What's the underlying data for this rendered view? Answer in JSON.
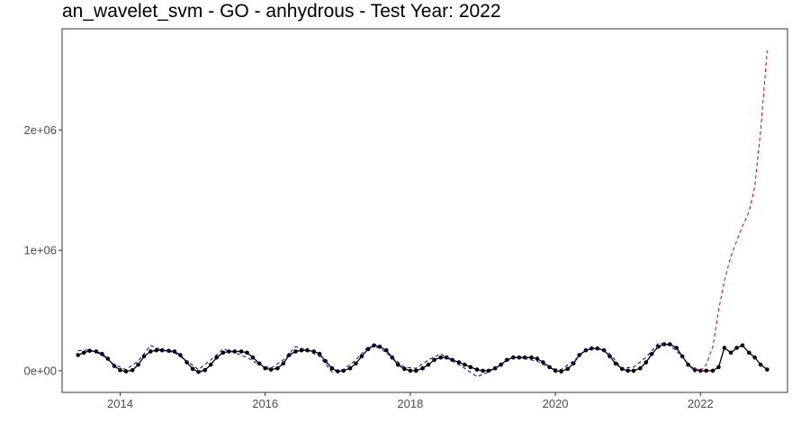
{
  "chart_data": {
    "type": "line",
    "title": "an_wavelet_svm - GO - anhydrous - Test Year: 2022",
    "xlabel": "",
    "ylabel": "",
    "xlim": [
      2013.2,
      2023.2
    ],
    "ylim": [
      -180000,
      2840000
    ],
    "x_ticks": [
      {
        "value": 2014,
        "label": "2014"
      },
      {
        "value": 2016,
        "label": "2016"
      },
      {
        "value": 2018,
        "label": "2018"
      },
      {
        "value": 2020,
        "label": "2020"
      },
      {
        "value": 2022,
        "label": "2022"
      }
    ],
    "y_ticks": [
      {
        "value": 0,
        "label": "0e+00"
      },
      {
        "value": 1000000,
        "label": "1e+06"
      },
      {
        "value": 2000000,
        "label": "2e+06"
      }
    ],
    "grid": false,
    "legend": "none",
    "colors": {
      "actual": "#000000",
      "fitted": "#0000cc",
      "forecast": "#e00000"
    },
    "series": [
      {
        "style": "solid-with-points",
        "points": [
          [
            2013.42,
            130000
          ],
          [
            2013.5,
            150000
          ],
          [
            2013.58,
            165000
          ],
          [
            2013.67,
            160000
          ],
          [
            2013.75,
            140000
          ],
          [
            2013.83,
            100000
          ],
          [
            2013.92,
            40000
          ],
          [
            2014.0,
            5000
          ],
          [
            2014.08,
            -5000
          ],
          [
            2014.17,
            5000
          ],
          [
            2014.25,
            50000
          ],
          [
            2014.33,
            120000
          ],
          [
            2014.42,
            160000
          ],
          [
            2014.5,
            170000
          ],
          [
            2014.58,
            170000
          ],
          [
            2014.67,
            165000
          ],
          [
            2014.75,
            160000
          ],
          [
            2014.83,
            130000
          ],
          [
            2014.92,
            70000
          ],
          [
            2015.0,
            15000
          ],
          [
            2015.08,
            -10000
          ],
          [
            2015.17,
            5000
          ],
          [
            2015.25,
            50000
          ],
          [
            2015.33,
            110000
          ],
          [
            2015.42,
            150000
          ],
          [
            2015.5,
            160000
          ],
          [
            2015.58,
            160000
          ],
          [
            2015.67,
            160000
          ],
          [
            2015.75,
            150000
          ],
          [
            2015.83,
            110000
          ],
          [
            2015.92,
            60000
          ],
          [
            2016.0,
            20000
          ],
          [
            2016.08,
            10000
          ],
          [
            2016.17,
            20000
          ],
          [
            2016.25,
            60000
          ],
          [
            2016.33,
            130000
          ],
          [
            2016.42,
            160000
          ],
          [
            2016.5,
            170000
          ],
          [
            2016.58,
            170000
          ],
          [
            2016.67,
            160000
          ],
          [
            2016.75,
            140000
          ],
          [
            2016.83,
            80000
          ],
          [
            2016.92,
            20000
          ],
          [
            2017.0,
            -5000
          ],
          [
            2017.08,
            0
          ],
          [
            2017.17,
            20000
          ],
          [
            2017.25,
            60000
          ],
          [
            2017.33,
            120000
          ],
          [
            2017.42,
            180000
          ],
          [
            2017.5,
            210000
          ],
          [
            2017.58,
            200000
          ],
          [
            2017.67,
            170000
          ],
          [
            2017.75,
            110000
          ],
          [
            2017.83,
            50000
          ],
          [
            2017.92,
            15000
          ],
          [
            2018.0,
            0
          ],
          [
            2018.08,
            0
          ],
          [
            2018.17,
            20000
          ],
          [
            2018.25,
            50000
          ],
          [
            2018.33,
            90000
          ],
          [
            2018.42,
            110000
          ],
          [
            2018.5,
            110000
          ],
          [
            2018.58,
            90000
          ],
          [
            2018.67,
            70000
          ],
          [
            2018.75,
            50000
          ],
          [
            2018.83,
            30000
          ],
          [
            2018.92,
            10000
          ],
          [
            2019.0,
            0
          ],
          [
            2019.08,
            0
          ],
          [
            2019.17,
            20000
          ],
          [
            2019.25,
            50000
          ],
          [
            2019.33,
            90000
          ],
          [
            2019.42,
            110000
          ],
          [
            2019.5,
            110000
          ],
          [
            2019.58,
            110000
          ],
          [
            2019.67,
            110000
          ],
          [
            2019.75,
            100000
          ],
          [
            2019.83,
            70000
          ],
          [
            2019.92,
            30000
          ],
          [
            2020.0,
            0
          ],
          [
            2020.08,
            -5000
          ],
          [
            2020.17,
            15000
          ],
          [
            2020.25,
            60000
          ],
          [
            2020.33,
            130000
          ],
          [
            2020.42,
            170000
          ],
          [
            2020.5,
            185000
          ],
          [
            2020.58,
            185000
          ],
          [
            2020.67,
            170000
          ],
          [
            2020.75,
            120000
          ],
          [
            2020.83,
            60000
          ],
          [
            2020.92,
            15000
          ],
          [
            2021.0,
            0
          ],
          [
            2021.08,
            0
          ],
          [
            2021.17,
            20000
          ],
          [
            2021.25,
            70000
          ],
          [
            2021.33,
            140000
          ],
          [
            2021.42,
            200000
          ],
          [
            2021.5,
            220000
          ],
          [
            2021.58,
            220000
          ],
          [
            2021.67,
            190000
          ],
          [
            2021.75,
            120000
          ],
          [
            2021.83,
            50000
          ],
          [
            2021.92,
            10000
          ],
          [
            2022.0,
            0
          ],
          [
            2022.08,
            0
          ],
          [
            2022.17,
            0
          ],
          [
            2022.25,
            30000
          ],
          [
            2022.33,
            190000
          ],
          [
            2022.42,
            150000
          ],
          [
            2022.5,
            190000
          ],
          [
            2022.58,
            210000
          ],
          [
            2022.67,
            150000
          ],
          [
            2022.75,
            110000
          ],
          [
            2022.83,
            50000
          ],
          [
            2022.92,
            10000
          ]
        ]
      },
      {
        "style": "dashed",
        "points": [
          [
            2013.42,
            165000
          ],
          [
            2013.58,
            175000
          ],
          [
            2013.75,
            130000
          ],
          [
            2013.92,
            50000
          ],
          [
            2014.08,
            10000
          ],
          [
            2014.25,
            80000
          ],
          [
            2014.42,
            210000
          ],
          [
            2014.58,
            170000
          ],
          [
            2014.75,
            150000
          ],
          [
            2014.92,
            80000
          ],
          [
            2015.08,
            10000
          ],
          [
            2015.25,
            90000
          ],
          [
            2015.42,
            180000
          ],
          [
            2015.58,
            150000
          ],
          [
            2015.75,
            110000
          ],
          [
            2015.92,
            50000
          ],
          [
            2016.08,
            20000
          ],
          [
            2016.25,
            90000
          ],
          [
            2016.42,
            200000
          ],
          [
            2016.58,
            170000
          ],
          [
            2016.75,
            120000
          ],
          [
            2016.92,
            -10000
          ],
          [
            2017.08,
            10000
          ],
          [
            2017.25,
            90000
          ],
          [
            2017.42,
            200000
          ],
          [
            2017.58,
            190000
          ],
          [
            2017.75,
            110000
          ],
          [
            2017.92,
            30000
          ],
          [
            2018.08,
            20000
          ],
          [
            2018.25,
            90000
          ],
          [
            2018.42,
            140000
          ],
          [
            2018.58,
            80000
          ],
          [
            2018.75,
            20000
          ],
          [
            2018.92,
            -50000
          ],
          [
            2019.08,
            -10000
          ],
          [
            2019.25,
            50000
          ],
          [
            2019.42,
            110000
          ],
          [
            2019.58,
            100000
          ],
          [
            2019.75,
            80000
          ],
          [
            2019.92,
            20000
          ],
          [
            2020.08,
            10000
          ],
          [
            2020.25,
            80000
          ],
          [
            2020.42,
            170000
          ],
          [
            2020.58,
            190000
          ],
          [
            2020.75,
            140000
          ],
          [
            2020.92,
            20000
          ],
          [
            2021.08,
            30000
          ],
          [
            2021.25,
            110000
          ],
          [
            2021.42,
            230000
          ],
          [
            2021.58,
            210000
          ],
          [
            2021.75,
            120000
          ],
          [
            2021.92,
            -10000
          ],
          [
            2022.0,
            10000
          ]
        ]
      },
      {
        "style": "dashed",
        "points": [
          [
            2021.92,
            20000
          ],
          [
            2022.0,
            0
          ],
          [
            2022.08,
            50000
          ],
          [
            2022.17,
            200000
          ],
          [
            2022.25,
            500000
          ],
          [
            2022.33,
            750000
          ],
          [
            2022.42,
            950000
          ],
          [
            2022.5,
            1080000
          ],
          [
            2022.58,
            1200000
          ],
          [
            2022.67,
            1320000
          ],
          [
            2022.75,
            1530000
          ],
          [
            2022.83,
            2000000
          ],
          [
            2022.92,
            2660000
          ]
        ]
      }
    ]
  }
}
